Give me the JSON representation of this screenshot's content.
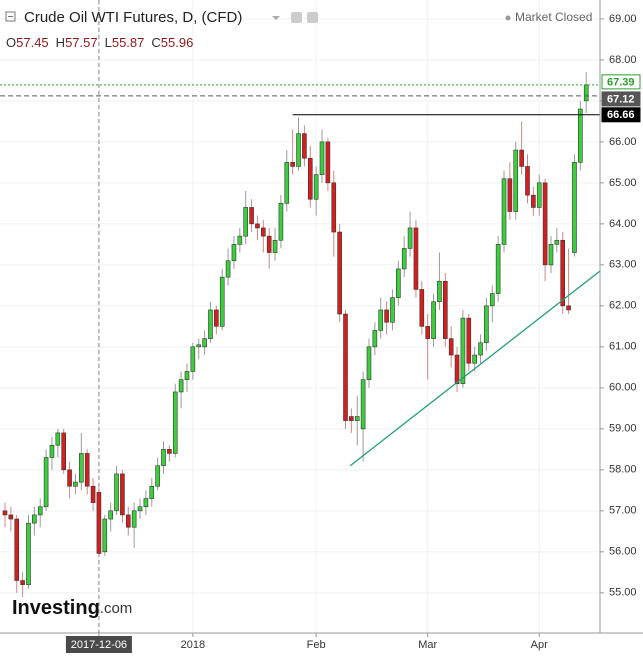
{
  "chart_data": {
    "type": "candlestick",
    "title": "Crude Oil WTI Futures, D, (CFD)",
    "status": "Market Closed",
    "legend_labels": {
      "open": "O",
      "high": "H",
      "low": "L",
      "close": "C"
    },
    "crosshair_index": 16,
    "logo": {
      "name": "Investing",
      "suffix": ".com"
    },
    "up_color": "#3ccf3c",
    "down_color": "#d41f1f",
    "open": [
      57.0,
      56.9,
      56.8,
      55.3,
      55.2,
      56.7,
      56.9,
      57.1,
      58.3,
      58.6,
      58.9,
      58.0,
      57.6,
      57.7,
      58.4,
      57.6,
      57.45,
      56.0,
      56.8,
      57.0,
      57.9,
      56.9,
      56.6,
      57.0,
      57.1,
      57.3,
      57.6,
      58.1,
      58.5,
      58.4,
      59.9,
      60.2,
      60.4,
      61.0,
      61.0,
      61.2,
      61.9,
      61.5,
      62.7,
      63.1,
      63.5,
      63.7,
      64.4,
      64.0,
      63.9,
      63.7,
      63.3,
      63.6,
      64.5,
      65.5,
      65.4,
      66.2,
      65.6,
      64.6,
      65.2,
      66.0,
      65.0,
      63.8,
      61.8,
      59.3,
      59.2,
      59.0,
      60.2,
      61.0,
      61.4,
      61.9,
      61.6,
      62.2,
      62.9,
      63.4,
      63.9,
      62.4,
      61.5,
      61.2,
      62.1,
      62.6,
      61.2,
      60.8,
      60.1,
      61.7,
      60.6,
      60.8,
      61.1,
      62.0,
      62.3,
      63.5,
      65.1,
      64.3,
      65.8,
      65.4,
      64.7,
      64.4,
      65.0,
      63.0,
      63.5,
      63.6,
      62.0,
      63.3,
      65.5,
      67.0
    ],
    "high": [
      57.2,
      57.1,
      56.9,
      55.5,
      56.9,
      57.1,
      57.3,
      58.5,
      58.8,
      59.0,
      59.0,
      58.2,
      57.9,
      58.9,
      58.5,
      57.8,
      57.57,
      56.9,
      57.2,
      58.1,
      58.0,
      57.1,
      57.2,
      57.3,
      57.5,
      57.8,
      58.3,
      58.7,
      58.6,
      60.1,
      60.4,
      60.6,
      61.1,
      61.2,
      61.4,
      62.1,
      62.0,
      62.9,
      63.4,
      63.7,
      63.9,
      64.8,
      64.6,
      64.2,
      64.1,
      63.9,
      63.9,
      64.7,
      65.8,
      66.3,
      66.6,
      66.4,
      65.9,
      65.4,
      66.3,
      66.1,
      65.3,
      64.0,
      61.9,
      59.5,
      59.8,
      60.4,
      61.2,
      61.6,
      62.2,
      62.1,
      62.4,
      63.1,
      63.7,
      64.3,
      64.1,
      62.6,
      61.8,
      62.3,
      63.3,
      62.8,
      61.5,
      61.0,
      61.9,
      61.8,
      61.0,
      61.3,
      62.2,
      62.5,
      63.7,
      65.3,
      65.5,
      66.0,
      66.5,
      65.7,
      64.9,
      65.2,
      65.1,
      63.7,
      63.9,
      63.8,
      63.4,
      65.7,
      67.0,
      67.7
    ],
    "low": [
      56.6,
      56.5,
      55.0,
      54.9,
      55.1,
      56.4,
      56.6,
      57.0,
      58.0,
      58.3,
      57.9,
      57.3,
      57.4,
      57.5,
      57.4,
      57.0,
      55.87,
      55.9,
      56.5,
      56.9,
      56.7,
      56.4,
      56.1,
      56.8,
      56.9,
      57.1,
      57.5,
      57.9,
      58.2,
      58.3,
      59.5,
      59.9,
      60.2,
      60.7,
      60.8,
      61.1,
      61.3,
      61.4,
      62.5,
      62.9,
      63.3,
      63.5,
      63.8,
      63.6,
      63.3,
      62.9,
      63.1,
      63.4,
      64.3,
      65.2,
      65.3,
      65.4,
      64.4,
      64.2,
      65.0,
      64.8,
      63.2,
      61.6,
      59.0,
      58.9,
      58.6,
      58.2,
      60.0,
      60.8,
      61.2,
      61.3,
      61.4,
      62.0,
      62.7,
      63.2,
      62.2,
      61.3,
      60.2,
      61.0,
      61.9,
      61.0,
      60.5,
      59.9,
      60.0,
      60.4,
      60.4,
      60.6,
      60.9,
      61.6,
      62.1,
      63.3,
      64.1,
      64.1,
      65.2,
      64.5,
      64.2,
      64.2,
      62.6,
      62.8,
      63.3,
      61.8,
      61.8,
      63.2,
      65.3,
      66.7
    ],
    "close": [
      56.9,
      56.8,
      55.3,
      55.2,
      56.7,
      56.9,
      57.1,
      58.3,
      58.6,
      58.9,
      58.0,
      57.6,
      57.7,
      58.4,
      57.6,
      57.2,
      55.96,
      56.8,
      57.0,
      57.9,
      56.9,
      56.6,
      57.0,
      57.1,
      57.3,
      57.6,
      58.1,
      58.5,
      58.4,
      59.9,
      60.2,
      60.4,
      61.0,
      61.05,
      61.2,
      61.9,
      61.5,
      62.7,
      63.1,
      63.5,
      63.7,
      64.4,
      64.0,
      63.9,
      63.7,
      63.3,
      63.6,
      64.5,
      65.5,
      65.4,
      66.2,
      65.6,
      64.6,
      65.2,
      66.0,
      65.0,
      63.8,
      61.8,
      59.2,
      59.2,
      59.3,
      60.2,
      61.0,
      61.4,
      61.9,
      61.6,
      62.2,
      62.9,
      63.4,
      63.9,
      62.4,
      61.5,
      61.2,
      62.1,
      62.6,
      61.2,
      60.8,
      60.1,
      61.7,
      60.6,
      60.8,
      61.1,
      62.0,
      62.3,
      63.5,
      65.1,
      64.3,
      65.8,
      65.4,
      64.7,
      64.4,
      65.0,
      63.0,
      63.5,
      63.6,
      62.0,
      61.9,
      65.5,
      66.8,
      67.39
    ],
    "xlim": [
      -0.85,
      101.35
    ],
    "ylim": [
      54.02,
      69.46
    ],
    "xticks": [
      {
        "value": 16,
        "label": "2017-12-06"
      },
      {
        "value": 32,
        "label": "2018"
      },
      {
        "value": 53,
        "label": "Feb"
      },
      {
        "value": 72,
        "label": "Mar"
      },
      {
        "value": 91,
        "label": "Apr"
      }
    ],
    "yticks": [
      {
        "value": 55,
        "label": "55.00"
      },
      {
        "value": 56,
        "label": "56.00"
      },
      {
        "value": 57,
        "label": "57.00"
      },
      {
        "value": 58,
        "label": "58.00"
      },
      {
        "value": 59,
        "label": "59.00"
      },
      {
        "value": 60,
        "label": "60.00"
      },
      {
        "value": 61,
        "label": "61.00"
      },
      {
        "value": 62,
        "label": "62.00"
      },
      {
        "value": 63,
        "label": "63.00"
      },
      {
        "value": 64,
        "label": "64.00"
      },
      {
        "value": 65,
        "label": "65.00"
      },
      {
        "value": 66,
        "label": "66.00"
      },
      {
        "value": 67,
        "label": "67.00"
      },
      {
        "value": 68,
        "label": "68.00"
      },
      {
        "value": 69,
        "label": "69.00"
      }
    ],
    "grid": true,
    "price_lines": [
      {
        "value": 67.39,
        "color": "#2ca02c",
        "style": "dotted"
      },
      {
        "value": 67.12,
        "color": "#555555",
        "style": "dashed"
      },
      {
        "value": 66.66,
        "color": "#000000",
        "style": "solid",
        "from_index": 49
      }
    ],
    "trendline": {
      "x": [
        58.8,
        101.35
      ],
      "y": [
        58.1,
        62.85
      ],
      "color": "#1f9e7a"
    }
  }
}
